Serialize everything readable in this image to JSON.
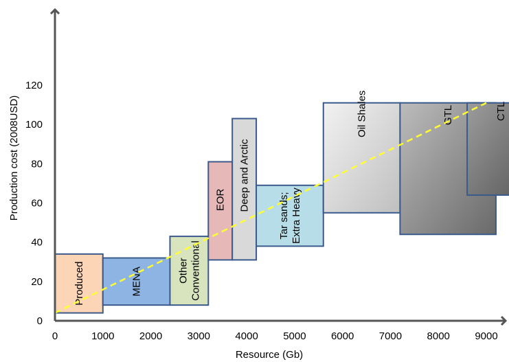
{
  "chart_data": {
    "type": "bar",
    "title": "",
    "xlabel": "Resource (Gb)",
    "ylabel": "Production cost (2008USD)",
    "xlim": [
      0,
      9400
    ],
    "ylim": [
      0,
      132
    ],
    "xticks": [
      0,
      1000,
      2000,
      3000,
      4000,
      5000,
      6000,
      7000,
      8000,
      9000
    ],
    "yticks": [
      0,
      20,
      40,
      60,
      80,
      100,
      120
    ],
    "grid": false,
    "legend": "none",
    "blocks": [
      {
        "label": [
          "Produced"
        ],
        "x0": 0,
        "x1": 1000,
        "y0": 4,
        "y1": 34,
        "fill": "#fbd5b5",
        "rotate": true
      },
      {
        "label": [
          "MENA"
        ],
        "x0": 1000,
        "x1": 2400,
        "y0": 8,
        "y1": 32,
        "fill": "#8eb4e3",
        "rotate": true
      },
      {
        "label": [
          "Other",
          "Conventional"
        ],
        "x0": 2400,
        "x1": 3200,
        "y0": 8,
        "y1": 43,
        "fill": "#d7e4bd",
        "rotate": true
      },
      {
        "label": [
          "EOR"
        ],
        "x0": 3200,
        "x1": 3700,
        "y0": 31,
        "y1": 81,
        "fill": "#e6b9b8",
        "rotate": true
      },
      {
        "label": [
          "Deep and Arctic"
        ],
        "x0": 3700,
        "x1": 4200,
        "y0": 31,
        "y1": 103,
        "fill": "#d9d9d9",
        "rotate": true
      },
      {
        "label": [
          "Tar sands;",
          "Extra Heavy"
        ],
        "x0": 4200,
        "x1": 5600,
        "y0": 38,
        "y1": 69,
        "fill": "#b7dee8",
        "rotate": true
      },
      {
        "label": [
          "Oil Shales"
        ],
        "x0": 5600,
        "x1": 7200,
        "y0": 55,
        "y1": 111,
        "fill": "#c0c0c0",
        "rotate": true
      },
      {
        "label": [
          "GTL"
        ],
        "x0": 7200,
        "x1": 9200,
        "y0": 44,
        "y1": 111,
        "fill": "#8c8c8c",
        "rotate": true
      },
      {
        "label": [
          "CTL"
        ],
        "x0": 8600,
        "x1": 10000,
        "y0": 64,
        "y1": 111,
        "fill": "#6e6e6e",
        "rotate": true
      }
    ],
    "trend_line": {
      "x": [
        0,
        9000
      ],
      "y": [
        4,
        111
      ],
      "color": "#ffff33",
      "style": "dashed"
    }
  }
}
